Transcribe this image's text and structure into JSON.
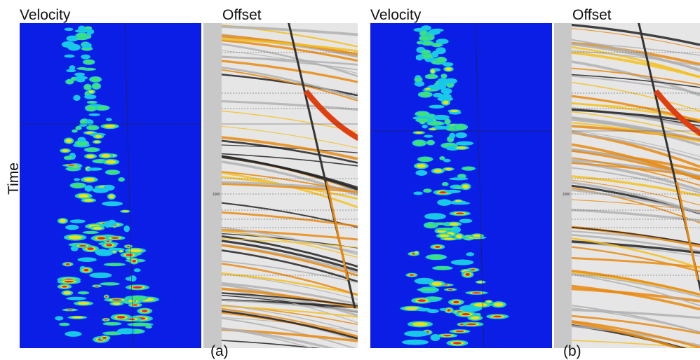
{
  "y_axis_label": "Time",
  "panels": [
    {
      "velocity_label": "Velocity",
      "offset_label": "Offset",
      "time_tick": "1000",
      "caption": "(a)"
    },
    {
      "velocity_label": "Velocity",
      "offset_label": "Offset",
      "time_tick": "1000",
      "caption": "(b)"
    }
  ]
}
